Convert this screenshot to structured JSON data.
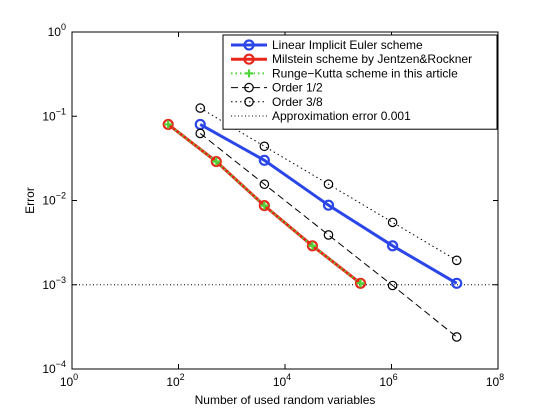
{
  "chart_data": {
    "type": "line",
    "title": "",
    "xlabel": "Number of used random variables",
    "ylabel": "Error",
    "xscale": "log",
    "yscale": "log",
    "xlim": [
      1,
      100000000
    ],
    "ylim": [
      0.0001,
      1
    ],
    "grid": false,
    "legend_position": "top-right",
    "xticks": [
      {
        "value": 1,
        "base": "10",
        "exp": "0"
      },
      {
        "value": 100,
        "base": "10",
        "exp": "2"
      },
      {
        "value": 10000,
        "base": "10",
        "exp": "4"
      },
      {
        "value": 1000000,
        "base": "10",
        "exp": "6"
      },
      {
        "value": 100000000,
        "base": "10",
        "exp": "8"
      }
    ],
    "yticks": [
      {
        "value": 0.0001,
        "base": "10",
        "exp": "−4"
      },
      {
        "value": 0.001,
        "base": "10",
        "exp": "−3"
      },
      {
        "value": 0.01,
        "base": "10",
        "exp": "−2"
      },
      {
        "value": 0.1,
        "base": "10",
        "exp": "−1"
      },
      {
        "value": 1,
        "base": "10",
        "exp": "0"
      }
    ],
    "series": [
      {
        "name": "Linear Implicit Euler scheme",
        "color": "#2b46e8",
        "line": "solid",
        "marker": "circle",
        "x": [
          256,
          4096,
          65536,
          1048576,
          16777216
        ],
        "y": [
          0.08,
          0.03,
          0.0088,
          0.0029,
          0.00104
        ]
      },
      {
        "name": "Milstein scheme by Jentzen&Rockner",
        "color": "#e8261a",
        "line": "solid",
        "marker": "circle",
        "x": [
          64,
          512,
          4096,
          32768,
          262144
        ],
        "y": [
          0.08,
          0.029,
          0.0087,
          0.0029,
          0.00104
        ]
      },
      {
        "name": "Runge−Kutta scheme in this article",
        "color": "#4fd43a",
        "line": "dotted",
        "marker": "plus",
        "x": [
          64,
          512,
          4096,
          32768,
          262144
        ],
        "y": [
          0.08,
          0.029,
          0.0087,
          0.0029,
          0.00104
        ]
      },
      {
        "name": "Order 1/2",
        "color": "#000000",
        "line": "dashed",
        "marker": "circle",
        "x": [
          256,
          4096,
          65536,
          1048576,
          16777216
        ],
        "y": [
          0.0625,
          0.0156,
          0.0039,
          0.00098,
          0.00024
        ]
      },
      {
        "name": "Order 3/8",
        "color": "#000000",
        "line": "dotted",
        "marker": "circle",
        "x": [
          256,
          4096,
          65536,
          1048576,
          16777216
        ],
        "y": [
          0.125,
          0.044,
          0.0156,
          0.0055,
          0.00195
        ]
      },
      {
        "name": "Approximation error 0.001",
        "color": "#000000",
        "line": "dotted-fine",
        "marker": "none",
        "x": [
          1,
          100000000
        ],
        "y": [
          0.001,
          0.001
        ]
      }
    ]
  }
}
